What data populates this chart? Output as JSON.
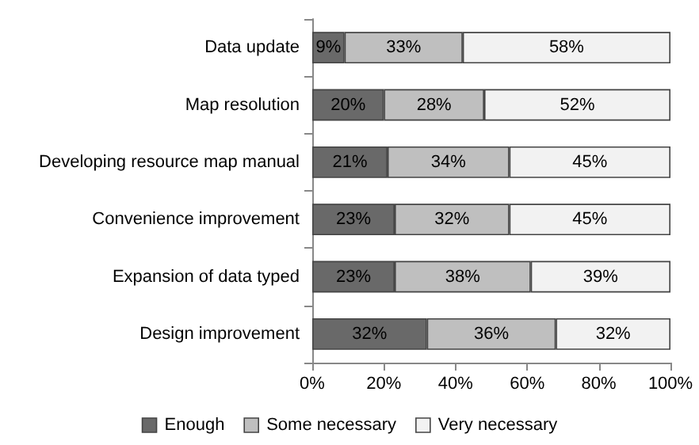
{
  "chart_data": {
    "type": "bar",
    "orientation": "horizontal",
    "stacked": true,
    "categories": [
      "Data update",
      "Map resolution",
      "Developing resource map manual",
      "Convenience improvement",
      "Expansion of data typed",
      "Design improvement"
    ],
    "series": [
      {
        "name": "Enough",
        "color": "#696969",
        "values": [
          9,
          20,
          21,
          23,
          23,
          32
        ],
        "value_labels": [
          "9%",
          "20%",
          "21%",
          "23%",
          "23%",
          "32%"
        ]
      },
      {
        "name": "Some necessary",
        "color": "#bfbfbf",
        "values": [
          33,
          28,
          34,
          32,
          38,
          36
        ],
        "value_labels": [
          "33%",
          "28%",
          "34%",
          "32%",
          "38%",
          "36%"
        ]
      },
      {
        "name": "Very necessary",
        "color": "#f2f2f2",
        "values": [
          58,
          52,
          45,
          45,
          39,
          32
        ],
        "value_labels": [
          "58%",
          "52%",
          "45%",
          "45%",
          "39%",
          "32%"
        ]
      }
    ],
    "xlim": [
      0,
      100
    ],
    "xticks": [
      {
        "value": 0,
        "label": "0%"
      },
      {
        "value": 20,
        "label": "20%"
      },
      {
        "value": 40,
        "label": "40%"
      },
      {
        "value": 60,
        "label": "60%"
      },
      {
        "value": 80,
        "label": "80%"
      },
      {
        "value": 100,
        "label": "100%"
      }
    ],
    "grid": false,
    "legend": "bottom"
  }
}
